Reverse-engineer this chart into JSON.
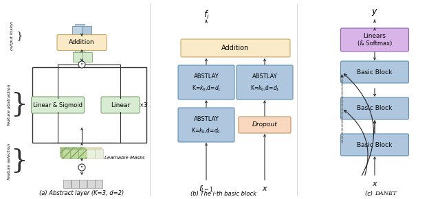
{
  "fig_width": 6.4,
  "fig_height": 2.9,
  "bg_color": "#ffffff",
  "colors": {
    "addition_fill": "#faeac8",
    "addition_edge": "#c8a860",
    "abstlay_fill": "#aec6de",
    "abstlay_edge": "#6090b0",
    "linear_fill": "#d8ecd4",
    "linear_edge": "#80aa70",
    "dropout_fill": "#fad8c0",
    "dropout_edge": "#c09060",
    "linears_fill": "#d8b4e8",
    "linears_edge": "#9060b0",
    "arrow": "#303030",
    "line": "#303030",
    "gray_box": "#d8d8d8",
    "gray_edge": "#909090",
    "blue_small": "#c8d8e8",
    "blue_small_edge": "#7090a8",
    "green_small": "#d0e8c8",
    "green_small_edge": "#80aa70",
    "hatch_green": "#c0dc9c",
    "hatch_edge": "#80a068",
    "outer_rect": "#404040"
  },
  "subfig_titles": {
    "a": "(a) Abstract layer (K=3, d=2)",
    "b": "(b) The i-th basic block",
    "c": "(c) DANET"
  },
  "brace_labels": {
    "output_fusion": "output fusion",
    "feature_abstraction": "feature abstraction",
    "feature_selection": "feature selection"
  }
}
